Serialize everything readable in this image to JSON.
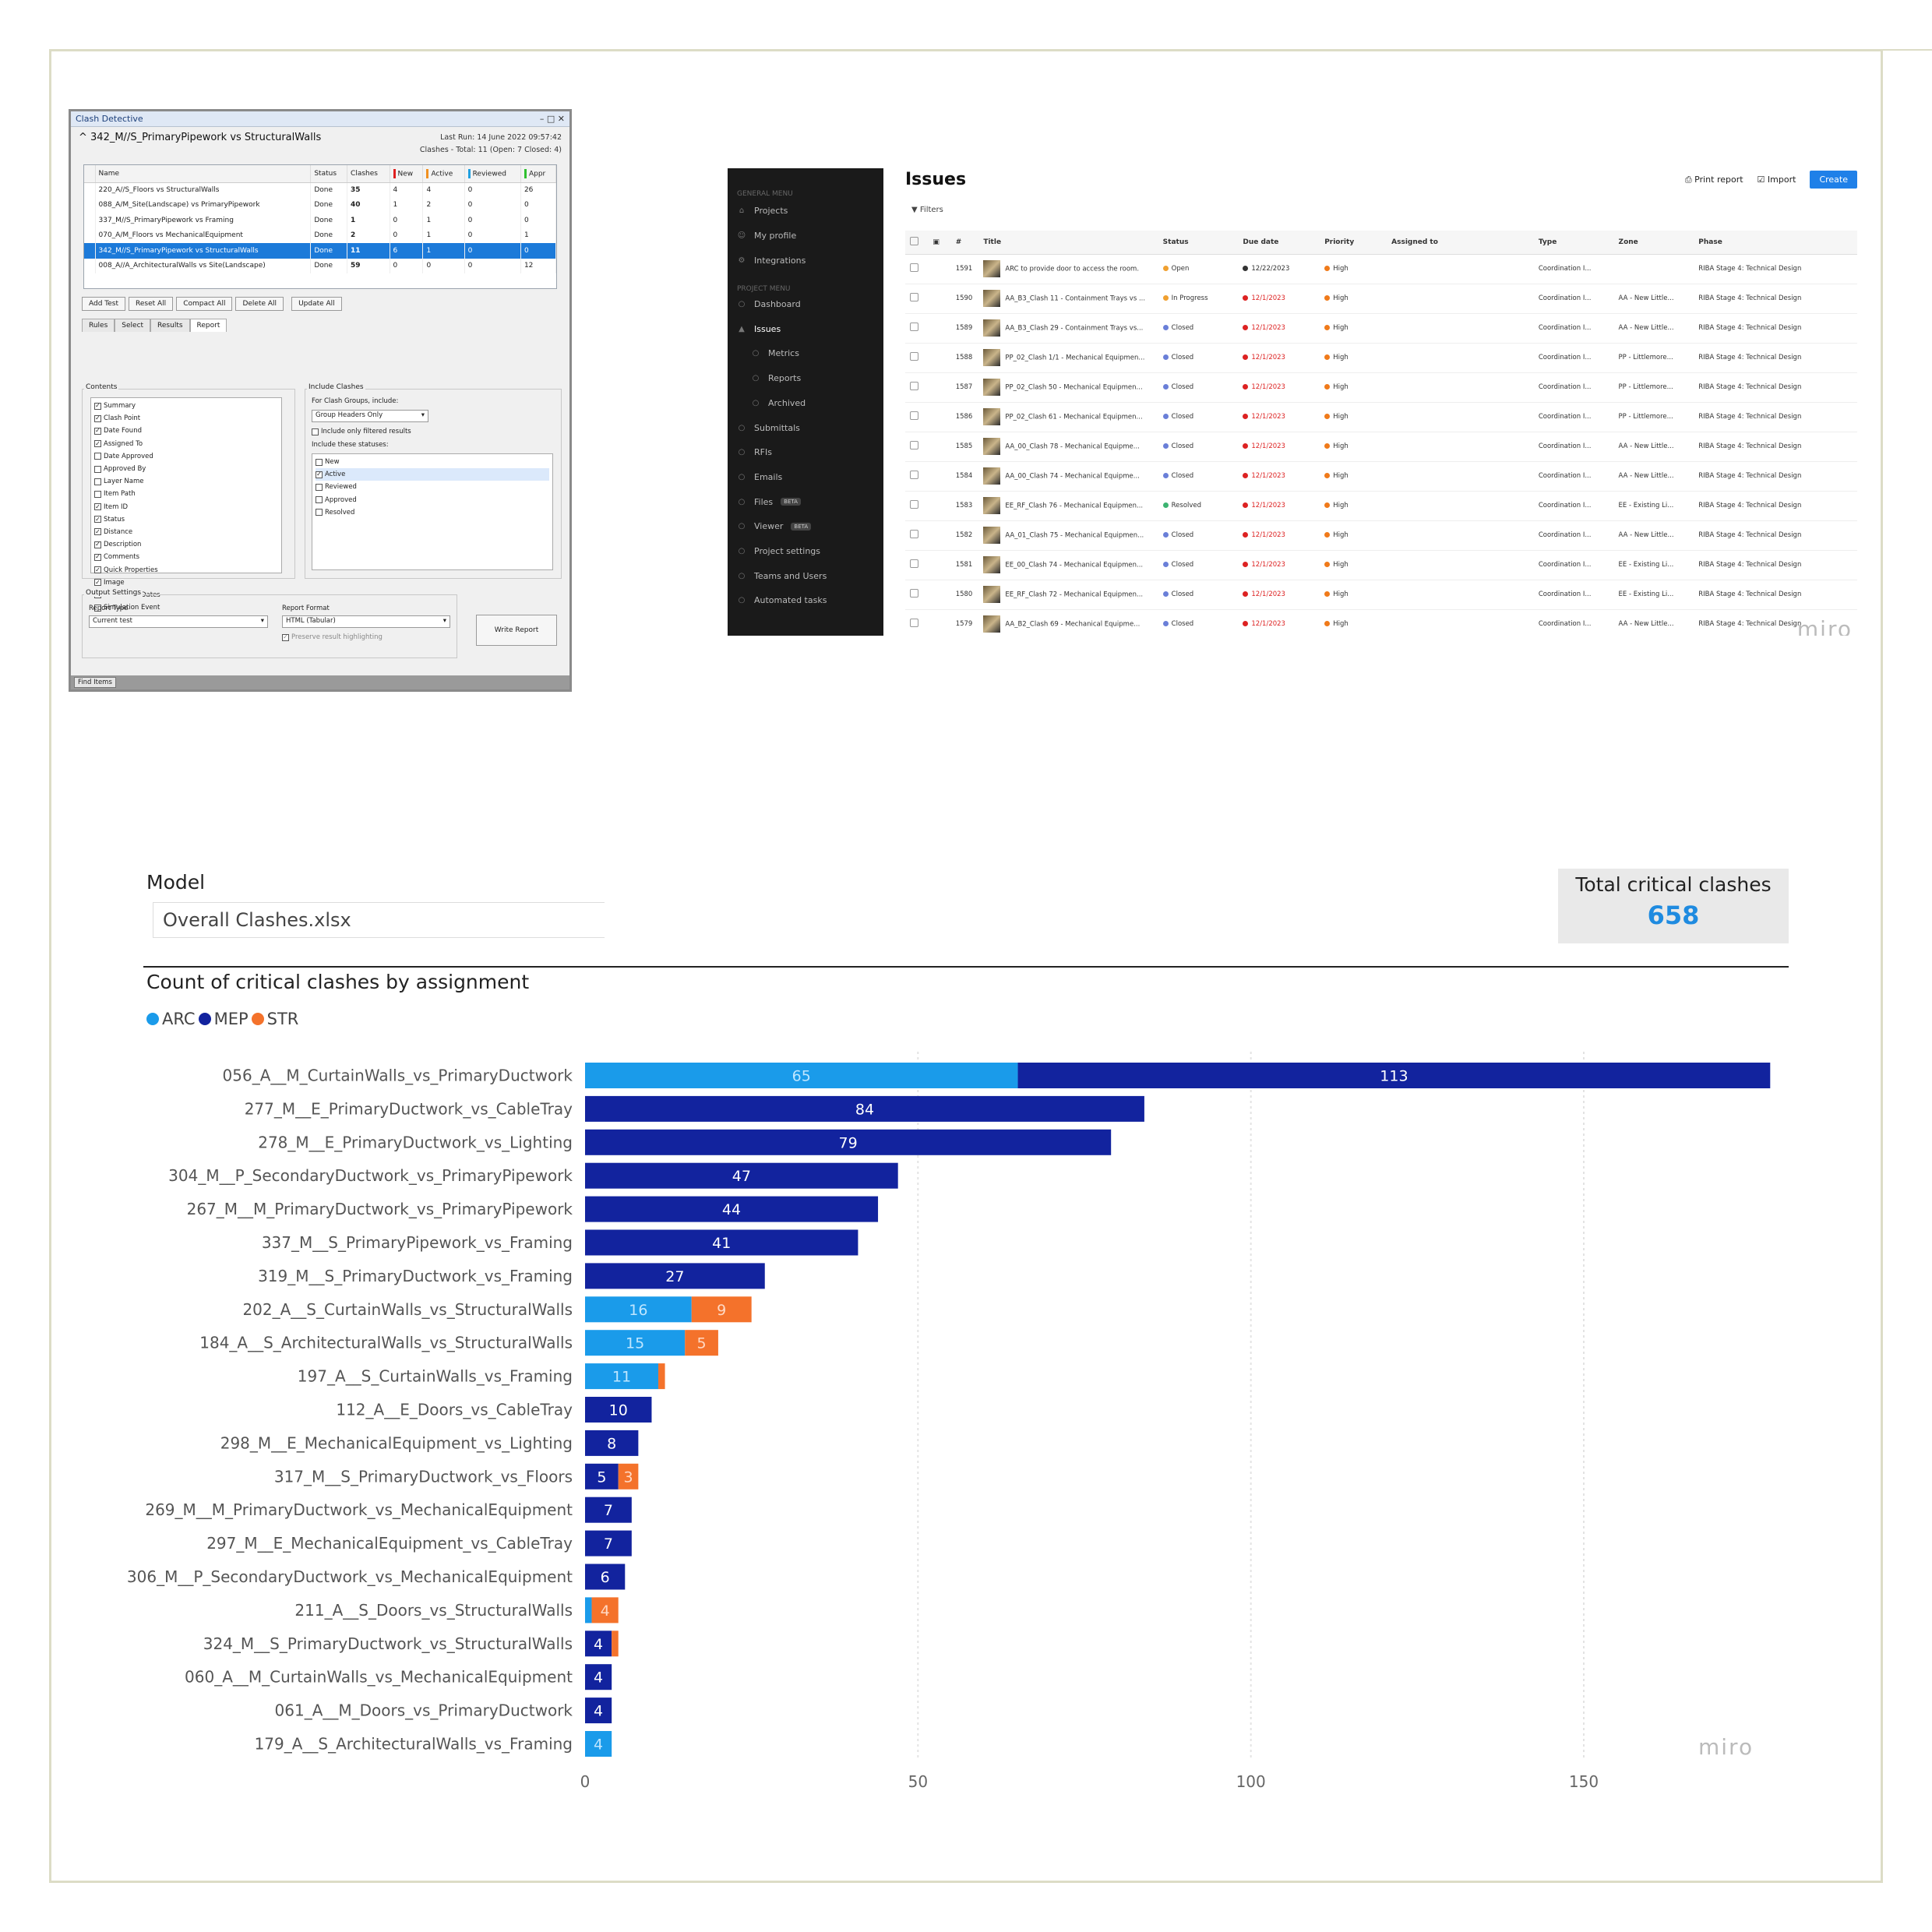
{
  "clash_detective": {
    "title": "Clash Detective",
    "title_controls": "– □ ✕",
    "test_name": "342_M//S_PrimaryPipework vs StructuralWalls",
    "last_run": "Last Run:  14 June 2022 09:57:42",
    "clash_summary": "Clashes - Total: 11  (Open: 7  Closed: 4)",
    "columns": [
      "Name",
      "Status",
      "Clashes",
      "New",
      "Active",
      "Reviewed",
      "Appr"
    ],
    "rows": [
      [
        "220_A//S_Floors vs StructuralWalls",
        "Done",
        "35",
        "4",
        "4",
        "0",
        "26"
      ],
      [
        "088_A/M_Site(Landscape) vs PrimaryPipework",
        "Done",
        "40",
        "1",
        "2",
        "0",
        "0"
      ],
      [
        "337_M//S_PrimaryPipework vs Framing",
        "Done",
        "1",
        "0",
        "1",
        "0",
        "0"
      ],
      [
        "070_A/M_Floors vs MechanicalEquipment",
        "Done",
        "2",
        "0",
        "1",
        "0",
        "1"
      ],
      [
        "342_M//S_PrimaryPipework vs StructuralWalls",
        "Done",
        "11",
        "6",
        "1",
        "0",
        "0"
      ],
      [
        "008_A//A_ArchitecturalWalls vs Site(Landscape)",
        "Done",
        "59",
        "0",
        "0",
        "0",
        "12"
      ]
    ],
    "buttons": [
      "Add Test",
      "Reset All",
      "Compact All",
      "Delete All",
      "Update All"
    ],
    "tabs": [
      "Rules",
      "Select",
      "Results",
      "Report"
    ],
    "contents_label": "Contents",
    "contents": [
      {
        "label": "Summary",
        "checked": true
      },
      {
        "label": "Clash Point",
        "checked": true
      },
      {
        "label": "Date Found",
        "checked": true
      },
      {
        "label": "Assigned To",
        "checked": true
      },
      {
        "label": "Date Approved",
        "checked": false
      },
      {
        "label": "Approved By",
        "checked": false
      },
      {
        "label": "Layer Name",
        "checked": false
      },
      {
        "label": "Item Path",
        "checked": false
      },
      {
        "label": "Item ID",
        "checked": true
      },
      {
        "label": "Status",
        "checked": true
      },
      {
        "label": "Distance",
        "checked": true
      },
      {
        "label": "Description",
        "checked": true
      },
      {
        "label": "Comments",
        "checked": true
      },
      {
        "label": "Quick Properties",
        "checked": true
      },
      {
        "label": "Image",
        "checked": true
      },
      {
        "label": "Simulation Dates",
        "checked": false
      },
      {
        "label": "Simulation Event",
        "checked": false
      }
    ],
    "include_clashes_label": "Include Clashes",
    "for_groups_label": "For Clash Groups, include:",
    "group_option": "Group Headers Only",
    "filtered_label": "Include only filtered results",
    "statuses_label": "Include these statuses:",
    "statuses": [
      {
        "label": "New",
        "checked": false
      },
      {
        "label": "Active",
        "checked": true
      },
      {
        "label": "Reviewed",
        "checked": false
      },
      {
        "label": "Approved",
        "checked": false
      },
      {
        "label": "Resolved",
        "checked": false
      }
    ],
    "output_label": "Output Settings",
    "report_type_label": "Report Type",
    "report_type": "Current test",
    "report_format_label": "Report Format",
    "report_format": "HTML (Tabular)",
    "preserve_label": "Preserve result highlighting",
    "write_report": "Write Report",
    "find_items": "Find Items"
  },
  "issues": {
    "general_menu": "GENERAL MENU",
    "general_items": [
      "Projects",
      "My profile",
      "Integrations"
    ],
    "project_menu": "PROJECT MENU",
    "project_items": [
      "Dashboard",
      "Issues",
      "Metrics",
      "Reports",
      "Archived",
      "Submittals",
      "RFIs",
      "Emails",
      "Files",
      "Viewer",
      "Project settings",
      "Teams and Users",
      "Automated tasks"
    ],
    "beta": "BETA",
    "title": "Issues",
    "print_report": "Print report",
    "import": "Import",
    "create": "Create",
    "filters": "Filters",
    "columns": [
      "",
      "",
      "#",
      "Title",
      "Status",
      "Due date",
      "Priority",
      "Assigned to",
      "Type",
      "Zone",
      "Phase"
    ],
    "rows": [
      {
        "id": "1591",
        "title": "ARC to provide door to access the room.",
        "status": "Open",
        "due": "12/22/2023",
        "priority": "High",
        "type": "Coordination I...",
        "zone": "",
        "phase": "RIBA Stage 4: Technical Design"
      },
      {
        "id": "1590",
        "title": "AA_B3_Clash 11 - Containment Trays vs ...",
        "status": "In Progress",
        "due": "12/1/2023",
        "priority": "High",
        "type": "Coordination I...",
        "zone": "AA - New Little...",
        "phase": "RIBA Stage 4: Technical Design"
      },
      {
        "id": "1589",
        "title": "AA_B3_Clash 29 - Containment Trays vs...",
        "status": "Closed",
        "due": "12/1/2023",
        "priority": "High",
        "type": "Coordination I...",
        "zone": "AA - New Little...",
        "phase": "RIBA Stage 4: Technical Design"
      },
      {
        "id": "1588",
        "title": "PP_02_Clash 1/1 - Mechanical Equipmen...",
        "status": "Closed",
        "due": "12/1/2023",
        "priority": "High",
        "type": "Coordination I...",
        "zone": "PP - Littlemore...",
        "phase": "RIBA Stage 4: Technical Design"
      },
      {
        "id": "1587",
        "title": "PP_02_Clash 50 - Mechanical Equipmen...",
        "status": "Closed",
        "due": "12/1/2023",
        "priority": "High",
        "type": "Coordination I...",
        "zone": "PP - Littlemore...",
        "phase": "RIBA Stage 4: Technical Design"
      },
      {
        "id": "1586",
        "title": "PP_02_Clash 61 - Mechanical Equipmen...",
        "status": "Closed",
        "due": "12/1/2023",
        "priority": "High",
        "type": "Coordination I...",
        "zone": "PP - Littlemore...",
        "phase": "RIBA Stage 4: Technical Design"
      },
      {
        "id": "1585",
        "title": "AA_00_Clash 78 - Mechanical Equipme...",
        "status": "Closed",
        "due": "12/1/2023",
        "priority": "High",
        "type": "Coordination I...",
        "zone": "AA - New Little...",
        "phase": "RIBA Stage 4: Technical Design"
      },
      {
        "id": "1584",
        "title": "AA_00_Clash 74 - Mechanical Equipme...",
        "status": "Closed",
        "due": "12/1/2023",
        "priority": "High",
        "type": "Coordination I...",
        "zone": "AA - New Little...",
        "phase": "RIBA Stage 4: Technical Design"
      },
      {
        "id": "1583",
        "title": "EE_RF_Clash 76 - Mechanical Equipmen...",
        "status": "Resolved",
        "due": "12/1/2023",
        "priority": "High",
        "type": "Coordination I...",
        "zone": "EE - Existing Li...",
        "phase": "RIBA Stage 4: Technical Design"
      },
      {
        "id": "1582",
        "title": "AA_01_Clash 75 - Mechanical Equipmen...",
        "status": "Closed",
        "due": "12/1/2023",
        "priority": "High",
        "type": "Coordination I...",
        "zone": "AA - New Little...",
        "phase": "RIBA Stage 4: Technical Design"
      },
      {
        "id": "1581",
        "title": "EE_00_Clash 74 - Mechanical Equipmen...",
        "status": "Closed",
        "due": "12/1/2023",
        "priority": "High",
        "type": "Coordination I...",
        "zone": "EE - Existing Li...",
        "phase": "RIBA Stage 4: Technical Design"
      },
      {
        "id": "1580",
        "title": "EE_RF_Clash 72 - Mechanical Equipmen...",
        "status": "Closed",
        "due": "12/1/2023",
        "priority": "High",
        "type": "Coordination I...",
        "zone": "EE - Existing Li...",
        "phase": "RIBA Stage 4: Technical Design"
      },
      {
        "id": "1579",
        "title": "AA_B2_Clash 69 - Mechanical Equipme...",
        "status": "Closed",
        "due": "12/1/2023",
        "priority": "High",
        "type": "Coordination I...",
        "zone": "AA - New Little...",
        "phase": "RIBA Stage 4: Technical Design"
      }
    ],
    "status_colors": {
      "Open": "#f0a030",
      "In Progress": "#f0a030",
      "Closed": "#6a7fd8",
      "Resolved": "#3cb371"
    },
    "priority_color": "#f07a1a",
    "watermark": "miro"
  },
  "report": {
    "model_label": "Model",
    "model_value": "Overall Clashes.xlsx",
    "kpi_label": "Total critical clashes",
    "kpi_value": "658",
    "watermark": "miro"
  },
  "chart_data": {
    "type": "bar",
    "orientation": "horizontal",
    "stacked": true,
    "title": "Count of critical clashes by assignment",
    "xlabel": "",
    "ylabel": "",
    "xlim": [
      0,
      180
    ],
    "xticks": [
      0,
      50,
      100,
      150
    ],
    "colors": {
      "ARC": "#1a9bea",
      "MEP": "#12239e",
      "STR": "#f4722b"
    },
    "categories": [
      "056_A__M_CurtainWalls_vs_PrimaryDuctwork",
      "277_M__E_PrimaryDuctwork_vs_CableTray",
      "278_M__E_PrimaryDuctwork_vs_Lighting",
      "304_M__P_SecondaryDuctwork_vs_PrimaryPipework",
      "267_M__M_PrimaryDuctwork_vs_PrimaryPipework",
      "337_M__S_PrimaryPipework_vs_Framing",
      "319_M__S_PrimaryDuctwork_vs_Framing",
      "202_A__S_CurtainWalls_vs_StructuralWalls",
      "184_A__S_ArchitecturalWalls_vs_StructuralWalls",
      "197_A__S_CurtainWalls_vs_Framing",
      "112_A__E_Doors_vs_CableTray",
      "298_M__E_MechanicalEquipment_vs_Lighting",
      "317_M__S_PrimaryDuctwork_vs_Floors",
      "269_M__M_PrimaryDuctwork_vs_MechanicalEquipment",
      "297_M__E_MechanicalEquipment_vs_CableTray",
      "306_M__P_SecondaryDuctwork_vs_MechanicalEquipment",
      "211_A__S_Doors_vs_StructuralWalls",
      "324_M__S_PrimaryDuctwork_vs_StructuralWalls",
      "060_A__M_CurtainWalls_vs_MechanicalEquipment",
      "061_A__M_Doors_vs_PrimaryDuctwork",
      "179_A__S_ArchitecturalWalls_vs_Framing"
    ],
    "series": [
      {
        "name": "ARC",
        "values": [
          65,
          0,
          0,
          0,
          0,
          0,
          0,
          16,
          15,
          11,
          0,
          0,
          0,
          0,
          0,
          0,
          1,
          0,
          0,
          0,
          4
        ]
      },
      {
        "name": "MEP",
        "values": [
          113,
          84,
          79,
          47,
          44,
          41,
          27,
          0,
          0,
          0,
          10,
          8,
          5,
          7,
          7,
          6,
          0,
          4,
          4,
          4,
          0
        ]
      },
      {
        "name": "STR",
        "values": [
          0,
          0,
          0,
          0,
          0,
          0,
          0,
          9,
          5,
          1,
          0,
          0,
          3,
          0,
          0,
          0,
          4,
          1,
          0,
          0,
          0
        ]
      }
    ],
    "labels": [
      [
        "65",
        "113",
        ""
      ],
      [
        "",
        "84",
        ""
      ],
      [
        "",
        "79",
        ""
      ],
      [
        "",
        "47",
        ""
      ],
      [
        "",
        "44",
        ""
      ],
      [
        "",
        "41",
        ""
      ],
      [
        "",
        "27",
        ""
      ],
      [
        "16",
        "",
        "9"
      ],
      [
        "15",
        "",
        "5"
      ],
      [
        "11",
        "",
        ""
      ],
      [
        "",
        "10",
        ""
      ],
      [
        "",
        "8",
        ""
      ],
      [
        "",
        "5",
        "3"
      ],
      [
        "",
        "7",
        ""
      ],
      [
        "",
        "7",
        ""
      ],
      [
        "",
        "6",
        ""
      ],
      [
        "",
        "",
        "4"
      ],
      [
        "",
        "4",
        ""
      ],
      [
        "",
        "4",
        ""
      ],
      [
        "",
        "4",
        ""
      ],
      [
        "4",
        "",
        ""
      ]
    ]
  }
}
